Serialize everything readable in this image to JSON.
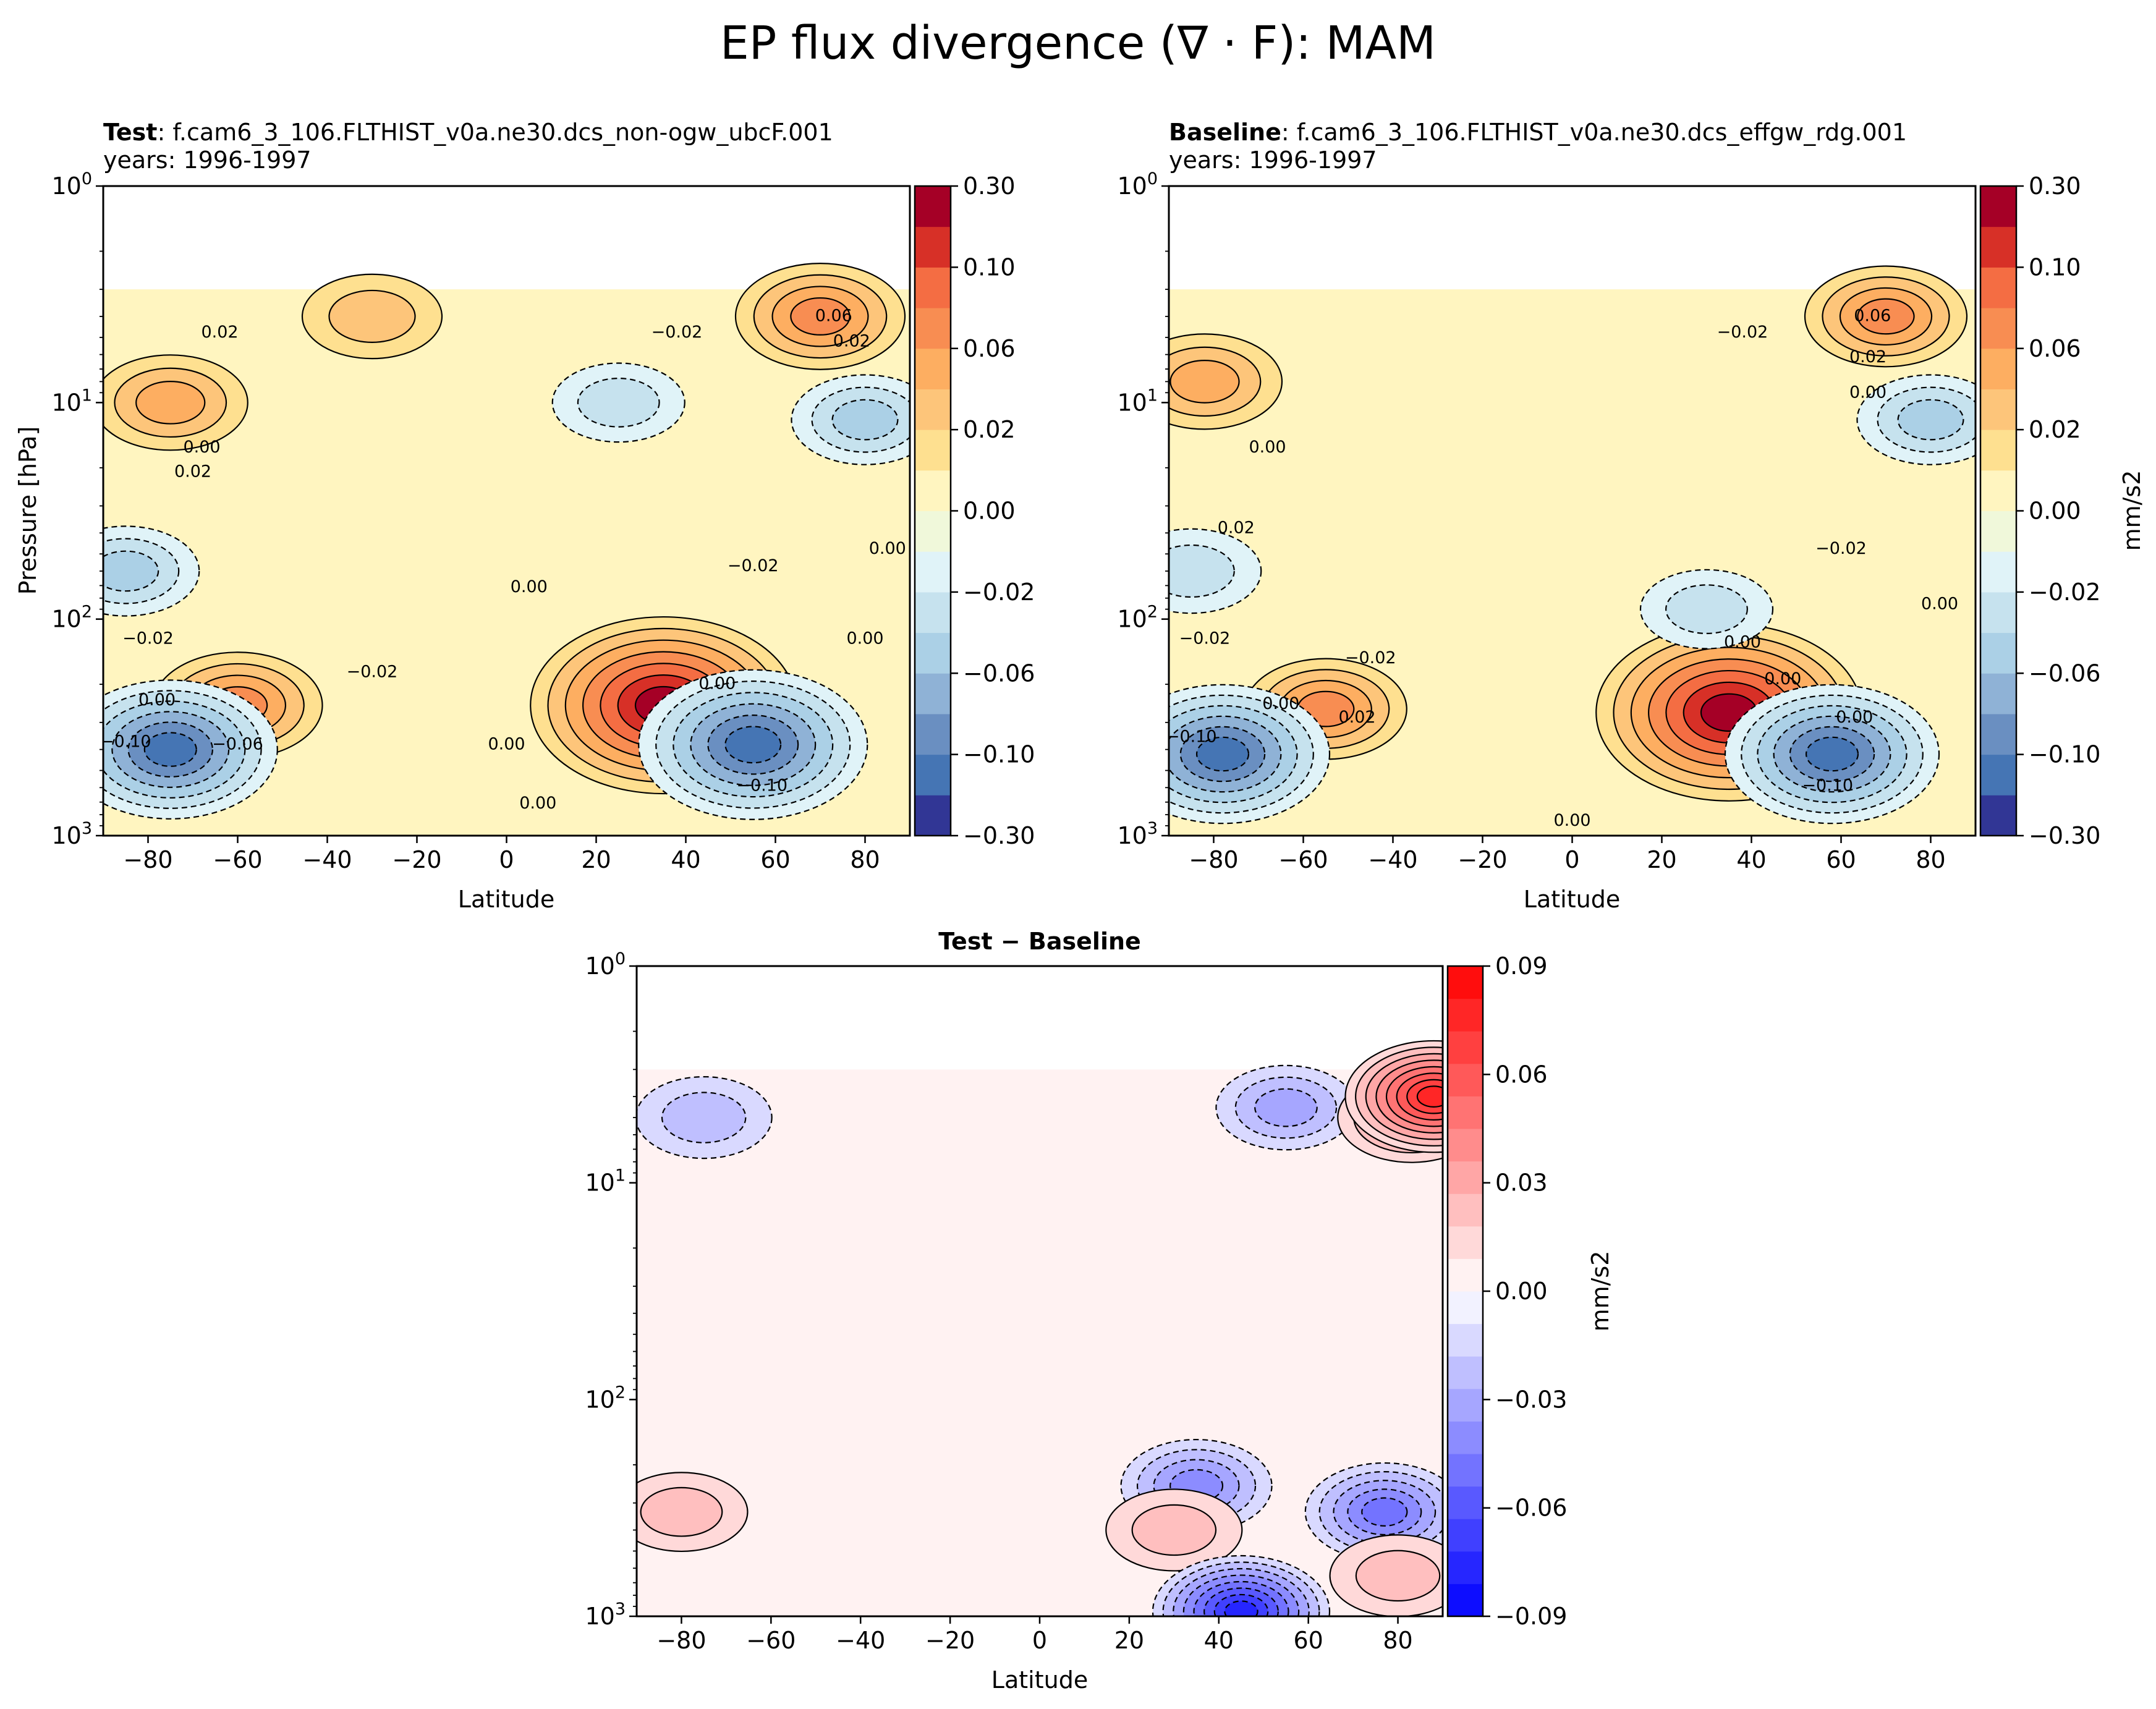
{
  "figure": {
    "title": "EP flux divergence (∇ · F): MAM"
  },
  "chart_data": [
    {
      "type": "heatmap",
      "panel": "test",
      "title_bold": "Test",
      "title_rest": ": f.cam6_3_106.FLTHIST_v0a.ne30.dcs_non-ogw_ubcF.001",
      "years": "years: 1996-1997",
      "xlabel": "Latitude",
      "ylabel": "Pressure [hPa]",
      "xlim": [
        -90,
        90
      ],
      "ylim": [
        1000,
        1
      ],
      "yscale": "log",
      "data_top_hPa": 3,
      "x_ticks": [
        -80,
        -60,
        -40,
        -20,
        0,
        20,
        40,
        60,
        80
      ],
      "x_tick_labels": [
        "−80",
        "−60",
        "−40",
        "−20",
        "0",
        "20",
        "40",
        "60",
        "80"
      ],
      "colorbar": {
        "levels": [
          -0.3,
          -0.2,
          -0.1,
          -0.08,
          -0.06,
          -0.04,
          -0.02,
          -0.01,
          0,
          0.01,
          0.02,
          0.04,
          0.06,
          0.08,
          0.1,
          0.2,
          0.3
        ],
        "labeled_ticks": [
          "0.30",
          "0.10",
          "0.06",
          "0.02",
          "0.00",
          "−0.02",
          "−0.06",
          "−0.10",
          "−0.30"
        ],
        "label": "",
        "cmap": "RdYlBu_r"
      },
      "features": [
        {
          "lat": -75,
          "p": 10,
          "value": 0.05
        },
        {
          "lat": -30,
          "p": 4,
          "value": 0.03
        },
        {
          "lat": 70,
          "p": 4,
          "value": 0.07
        },
        {
          "lat": -85,
          "p": 60,
          "value": -0.04
        },
        {
          "lat": 35,
          "p": 250,
          "value": 0.2
        },
        {
          "lat": -60,
          "p": 250,
          "value": 0.07
        },
        {
          "lat": -75,
          "p": 400,
          "value": -0.13
        },
        {
          "lat": 55,
          "p": 380,
          "value": -0.15
        },
        {
          "lat": 80,
          "p": 12,
          "value": -0.04
        },
        {
          "lat": 25,
          "p": 10,
          "value": -0.02
        }
      ],
      "contour_labels": [
        {
          "text": "0.06",
          "lat": 73,
          "p": 4.2
        },
        {
          "text": "0.02",
          "lat": -64,
          "p": 5.0
        },
        {
          "text": "−0.02",
          "lat": 38,
          "p": 5.0
        },
        {
          "text": "0.02",
          "lat": 77,
          "p": 5.5
        },
        {
          "text": "0.00",
          "lat": -68,
          "p": 17
        },
        {
          "text": "0.02",
          "lat": -70,
          "p": 22
        },
        {
          "text": "−0.02",
          "lat": 55,
          "p": 60
        },
        {
          "text": "0.00",
          "lat": 85,
          "p": 50
        },
        {
          "text": "0.00",
          "lat": 5,
          "p": 75
        },
        {
          "text": "−0.02",
          "lat": -80,
          "p": 130
        },
        {
          "text": "−0.02",
          "lat": -30,
          "p": 185
        },
        {
          "text": "0.00",
          "lat": 80,
          "p": 130
        },
        {
          "text": "0.00",
          "lat": -78,
          "p": 250
        },
        {
          "text": "0.00",
          "lat": 47,
          "p": 210
        },
        {
          "text": "−0.06",
          "lat": -60,
          "p": 400
        },
        {
          "text": "−0.10",
          "lat": -85,
          "p": 390
        },
        {
          "text": "0.00",
          "lat": 0,
          "p": 400
        },
        {
          "text": "0.00",
          "lat": 7,
          "p": 750
        },
        {
          "text": "−0.10",
          "lat": 57,
          "p": 620
        }
      ]
    },
    {
      "type": "heatmap",
      "panel": "baseline",
      "title_bold": "Baseline",
      "title_rest": ": f.cam6_3_106.FLTHIST_v0a.ne30.dcs_effgw_rdg.001",
      "years": "years: 1996-1997",
      "xlabel": "Latitude",
      "xlim": [
        -90,
        90
      ],
      "ylim": [
        1000,
        1
      ],
      "yscale": "log",
      "data_top_hPa": 3,
      "x_ticks": [
        -80,
        -60,
        -40,
        -20,
        0,
        20,
        40,
        60,
        80
      ],
      "x_tick_labels": [
        "−80",
        "−60",
        "−40",
        "−20",
        "0",
        "20",
        "40",
        "60",
        "80"
      ],
      "colorbar": {
        "levels": [
          -0.3,
          -0.2,
          -0.1,
          -0.08,
          -0.06,
          -0.04,
          -0.02,
          -0.01,
          0,
          0.01,
          0.02,
          0.04,
          0.06,
          0.08,
          0.1,
          0.2,
          0.3
        ],
        "labeled_ticks": [
          "0.30",
          "0.10",
          "0.06",
          "0.02",
          "0.00",
          "−0.02",
          "−0.06",
          "−0.10",
          "−0.30"
        ],
        "label": "mm/s2",
        "cmap": "RdYlBu_r"
      },
      "features": [
        {
          "lat": -82,
          "p": 8,
          "value": 0.05
        },
        {
          "lat": 70,
          "p": 4,
          "value": 0.06
        },
        {
          "lat": -85,
          "p": 60,
          "value": -0.03
        },
        {
          "lat": 35,
          "p": 270,
          "value": 0.22
        },
        {
          "lat": -55,
          "p": 260,
          "value": 0.06
        },
        {
          "lat": -78,
          "p": 420,
          "value": -0.13
        },
        {
          "lat": 58,
          "p": 420,
          "value": -0.13
        },
        {
          "lat": 80,
          "p": 12,
          "value": -0.04
        },
        {
          "lat": 30,
          "p": 90,
          "value": -0.02
        }
      ],
      "contour_labels": [
        {
          "text": "−0.02",
          "lat": 38,
          "p": 5.0
        },
        {
          "text": "0.06",
          "lat": 67,
          "p": 4.2
        },
        {
          "text": "0.02",
          "lat": 66,
          "p": 6.5
        },
        {
          "text": "0.00",
          "lat": 66,
          "p": 9.5
        },
        {
          "text": "0.00",
          "lat": -68,
          "p": 17
        },
        {
          "text": "0.02",
          "lat": -75,
          "p": 40
        },
        {
          "text": "−0.02",
          "lat": 60,
          "p": 50
        },
        {
          "text": "−0.02",
          "lat": -82,
          "p": 130
        },
        {
          "text": "−0.02",
          "lat": -45,
          "p": 160
        },
        {
          "text": "0.00",
          "lat": 82,
          "p": 90
        },
        {
          "text": "0.00",
          "lat": 38,
          "p": 135
        },
        {
          "text": "0.00",
          "lat": 47,
          "p": 200
        },
        {
          "text": "0.00",
          "lat": 63,
          "p": 300
        },
        {
          "text": "0.00",
          "lat": -65,
          "p": 260
        },
        {
          "text": "0.02",
          "lat": -48,
          "p": 300
        },
        {
          "text": "−0.10",
          "lat": -85,
          "p": 370
        },
        {
          "text": "−0.10",
          "lat": 57,
          "p": 620
        },
        {
          "text": "0.00",
          "lat": 0,
          "p": 900
        }
      ]
    },
    {
      "type": "heatmap",
      "panel": "difference",
      "title": "Test − Baseline",
      "xlabel": "Latitude",
      "xlim": [
        -90,
        90
      ],
      "ylim": [
        1000,
        1
      ],
      "yscale": "log",
      "data_top_hPa": 3,
      "x_ticks": [
        -80,
        -60,
        -40,
        -20,
        0,
        20,
        40,
        60,
        80
      ],
      "x_tick_labels": [
        "−80",
        "−60",
        "−40",
        "−20",
        "0",
        "20",
        "40",
        "60",
        "80"
      ],
      "colorbar": {
        "levels": [
          -0.1,
          -0.09,
          -0.08,
          -0.07,
          -0.06,
          -0.05,
          -0.04,
          -0.03,
          -0.02,
          -0.01,
          0,
          0.01,
          0.02,
          0.03,
          0.04,
          0.05,
          0.06,
          0.07,
          0.08,
          0.09,
          0.1
        ],
        "labeled_ticks": [
          "0.09",
          "0.06",
          "0.03",
          "0.00",
          "−0.03",
          "−0.06",
          "−0.09"
        ],
        "label": "mm/s2",
        "cmap": "bwr"
      },
      "features": [
        {
          "lat": -75,
          "p": 5,
          "value": -0.025
        },
        {
          "lat": 55,
          "p": 4.5,
          "value": -0.03
        },
        {
          "lat": 83,
          "p": 5,
          "value": 0.04
        },
        {
          "lat": 88,
          "p": 4,
          "value": 0.08
        },
        {
          "lat": 35,
          "p": 250,
          "value": -0.045
        },
        {
          "lat": 77,
          "p": 330,
          "value": -0.055
        },
        {
          "lat": -80,
          "p": 330,
          "value": 0.02
        },
        {
          "lat": 30,
          "p": 400,
          "value": 0.025
        },
        {
          "lat": 80,
          "p": 650,
          "value": 0.025
        },
        {
          "lat": 45,
          "p": 950,
          "value": -0.08
        }
      ]
    }
  ]
}
